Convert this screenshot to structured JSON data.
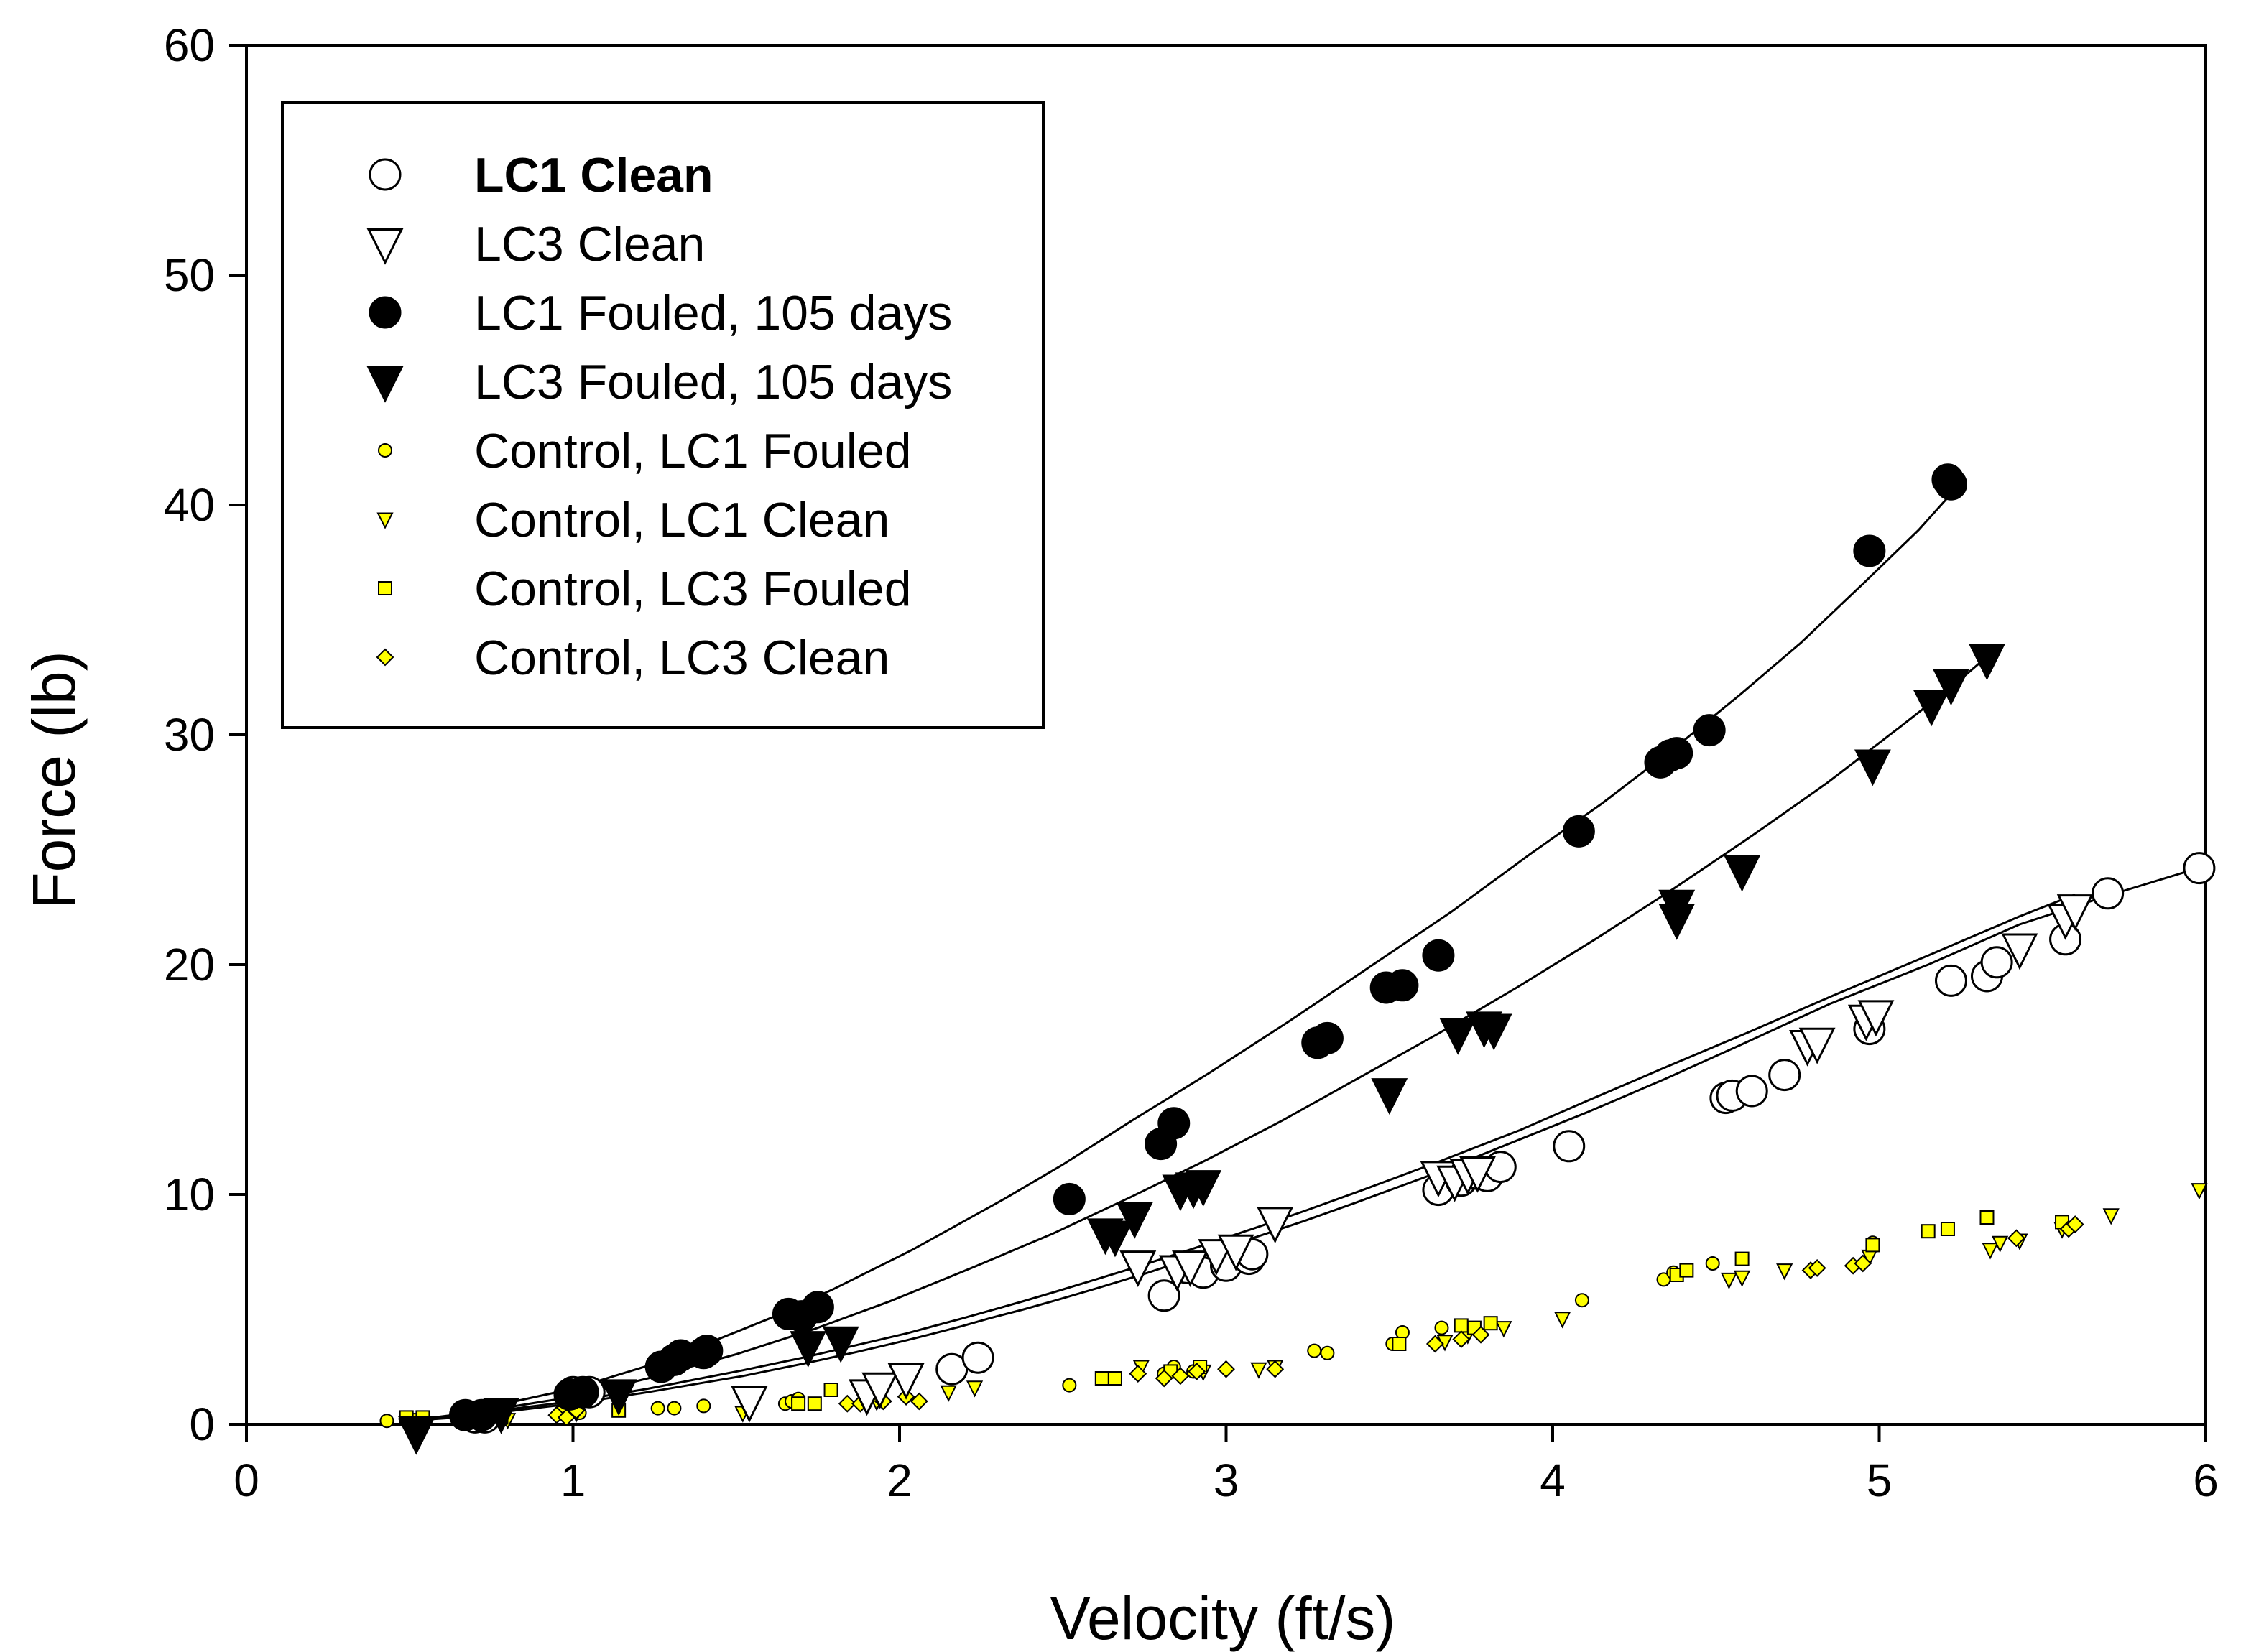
{
  "chart_data": {
    "type": "scatter",
    "title": "",
    "xlabel": "Velocity (ft/s)",
    "ylabel": "Force (lb)",
    "xlim": [
      0,
      6
    ],
    "ylim": [
      0,
      60
    ],
    "xticks": [
      0,
      1,
      2,
      3,
      4,
      5,
      6
    ],
    "yticks": [
      0,
      10,
      20,
      30,
      40,
      50,
      60
    ],
    "grid": false,
    "legend_position": "top-left",
    "legend_bold_first": true,
    "colors": {
      "marker_yellow": "#FFFF00",
      "black": "#000000",
      "white": "#FFFFFF"
    },
    "series": [
      {
        "name": "LC1 Clean",
        "marker": "circle",
        "size": "large",
        "fill": "#FFFFFF",
        "stroke": "#000000",
        "fit": [
          0.49,
          0.63,
          1.0,
          1.23,
          1.52,
          1.71,
          1.87,
          2.02,
          2.09,
          2.19,
          2.28,
          2.38,
          2.48,
          2.6,
          2.75,
          2.92,
          3.09,
          3.24,
          3.4,
          3.65,
          3.9,
          4.11,
          4.34,
          4.59,
          4.85,
          5.15,
          5.43,
          5.7,
          6.0
        ],
        "fit_y": [
          0.15,
          0.28,
          0.9,
          1.4,
          2.1,
          2.65,
          3.15,
          3.65,
          3.9,
          4.27,
          4.63,
          5.0,
          5.4,
          5.9,
          6.55,
          7.34,
          8.14,
          8.85,
          9.66,
          10.97,
          12.4,
          13.6,
          15.0,
          16.6,
          18.3,
          20.0,
          21.75,
          23.0,
          24.3
        ],
        "points": [
          [
            0.7,
            0.3
          ],
          [
            0.73,
            0.3
          ],
          [
            1.0,
            1.4
          ],
          [
            1.05,
            1.4
          ],
          [
            2.16,
            2.4
          ],
          [
            2.24,
            2.9
          ],
          [
            2.81,
            5.6
          ],
          [
            2.88,
            6.8
          ],
          [
            2.93,
            6.6
          ],
          [
            3.0,
            6.9
          ],
          [
            3.07,
            7.2
          ],
          [
            3.08,
            7.4
          ],
          [
            3.65,
            10.2
          ],
          [
            3.72,
            10.6
          ],
          [
            3.77,
            10.9
          ],
          [
            3.8,
            10.8
          ],
          [
            3.84,
            11.2
          ],
          [
            4.05,
            12.1
          ],
          [
            4.53,
            14.2
          ],
          [
            4.55,
            14.3
          ],
          [
            4.61,
            14.5
          ],
          [
            4.71,
            15.2
          ],
          [
            4.97,
            17.2
          ],
          [
            5.22,
            19.3
          ],
          [
            5.33,
            19.5
          ],
          [
            5.36,
            20.1
          ],
          [
            5.57,
            21.1
          ],
          [
            5.7,
            23.1
          ],
          [
            5.98,
            24.2
          ]
        ]
      },
      {
        "name": "LC3 Clean",
        "marker": "triangle-down",
        "size": "large",
        "fill": "#FFFFFF",
        "stroke": "#000000",
        "fit": [
          0.49,
          0.63,
          1.0,
          1.23,
          1.52,
          1.71,
          1.87,
          2.02,
          2.09,
          2.19,
          2.28,
          2.38,
          2.48,
          2.6,
          2.75,
          2.92,
          3.09,
          3.24,
          3.4,
          3.65,
          3.9,
          4.11,
          4.34,
          4.59,
          4.85,
          5.15,
          5.43,
          5.6
        ],
        "fit_y": [
          0.2,
          0.35,
          1.0,
          1.55,
          2.35,
          2.92,
          3.45,
          3.95,
          4.22,
          4.6,
          4.96,
          5.36,
          5.78,
          6.3,
          6.95,
          7.74,
          8.55,
          9.28,
          10.1,
          11.42,
          12.8,
          14.1,
          15.5,
          17.0,
          18.6,
          20.4,
          22.1,
          23.05
        ],
        "points": [
          [
            0.52,
            -0.4
          ],
          [
            1.54,
            1.0
          ],
          [
            1.9,
            1.3
          ],
          [
            1.94,
            1.6
          ],
          [
            2.02,
            2.0
          ],
          [
            2.73,
            6.9
          ],
          [
            2.85,
            6.7
          ],
          [
            2.89,
            6.9
          ],
          [
            2.97,
            7.4
          ],
          [
            3.03,
            7.6
          ],
          [
            3.15,
            8.8
          ],
          [
            3.65,
            10.8
          ],
          [
            3.7,
            10.6
          ],
          [
            3.74,
            10.9
          ],
          [
            3.77,
            11.0
          ],
          [
            4.78,
            16.5
          ],
          [
            4.81,
            16.6
          ],
          [
            4.96,
            17.6
          ],
          [
            4.99,
            17.8
          ],
          [
            5.43,
            20.7
          ],
          [
            5.57,
            22.0
          ],
          [
            5.6,
            22.4
          ]
        ]
      },
      {
        "name": "LC1 Fouled, 105 days",
        "marker": "circle",
        "size": "large",
        "fill": "#000000",
        "stroke": "#000000",
        "fit": [
          0.49,
          0.63,
          1.0,
          1.23,
          1.4,
          1.61,
          1.8,
          2.04,
          2.32,
          2.5,
          2.71,
          2.95,
          3.2,
          3.45,
          3.69,
          3.93,
          4.15,
          4.38,
          4.57,
          4.76,
          4.96,
          5.12,
          5.24
        ],
        "fit_y": [
          0.15,
          0.4,
          1.55,
          2.55,
          3.45,
          4.65,
          5.9,
          7.6,
          9.8,
          11.3,
          13.2,
          15.3,
          17.6,
          20.0,
          22.3,
          24.8,
          27.0,
          29.5,
          31.7,
          34.0,
          36.7,
          38.9,
          40.8
        ],
        "points": [
          [
            0.67,
            0.4
          ],
          [
            0.72,
            0.4
          ],
          [
            0.99,
            1.3
          ],
          [
            1.03,
            1.4
          ],
          [
            1.27,
            2.5
          ],
          [
            1.31,
            2.8
          ],
          [
            1.33,
            3.0
          ],
          [
            1.4,
            3.1
          ],
          [
            1.41,
            3.2
          ],
          [
            1.66,
            4.8
          ],
          [
            1.7,
            4.7
          ],
          [
            1.75,
            5.1
          ],
          [
            2.52,
            9.8
          ],
          [
            2.8,
            12.2
          ],
          [
            2.84,
            13.1
          ],
          [
            3.28,
            16.6
          ],
          [
            3.31,
            16.8
          ],
          [
            3.49,
            19.0
          ],
          [
            3.54,
            19.1
          ],
          [
            3.65,
            20.4
          ],
          [
            4.08,
            25.8
          ],
          [
            4.33,
            28.8
          ],
          [
            4.36,
            29.1
          ],
          [
            4.38,
            29.2
          ],
          [
            4.48,
            30.2
          ],
          [
            4.97,
            38.0
          ],
          [
            5.21,
            41.1
          ],
          [
            5.22,
            40.9
          ]
        ]
      },
      {
        "name": "LC3 Fouled, 105 days",
        "marker": "triangle-down",
        "size": "large",
        "fill": "#000000",
        "stroke": "#000000",
        "fit": [
          0.49,
          0.63,
          1.0,
          1.23,
          1.5,
          1.74,
          1.97,
          2.22,
          2.47,
          2.71,
          2.94,
          3.17,
          3.41,
          3.65,
          3.89,
          4.13,
          4.37,
          4.61,
          4.84,
          5.06,
          5.24,
          5.33
        ],
        "fit_y": [
          0.15,
          0.35,
          1.2,
          2.0,
          3.05,
          4.15,
          5.35,
          6.8,
          8.3,
          9.9,
          11.5,
          13.2,
          15.1,
          17.0,
          19.0,
          21.1,
          23.3,
          25.6,
          27.9,
          30.3,
          32.3,
          33.4
        ],
        "points": [
          [
            0.52,
            -0.3
          ],
          [
            0.78,
            0.5
          ],
          [
            1.14,
            1.3
          ],
          [
            1.72,
            3.4
          ],
          [
            1.82,
            3.6
          ],
          [
            2.63,
            8.3
          ],
          [
            2.66,
            8.2
          ],
          [
            2.72,
            9.0
          ],
          [
            2.86,
            10.2
          ],
          [
            2.9,
            10.3
          ],
          [
            2.93,
            10.4
          ],
          [
            3.5,
            14.4
          ],
          [
            3.71,
            17.0
          ],
          [
            3.79,
            17.3
          ],
          [
            3.82,
            17.2
          ],
          [
            4.38,
            22.6
          ],
          [
            4.38,
            22.0
          ],
          [
            4.58,
            24.1
          ],
          [
            4.98,
            28.7
          ],
          [
            5.16,
            31.3
          ],
          [
            5.22,
            32.2
          ],
          [
            5.33,
            33.3
          ]
        ]
      },
      {
        "name": "Control, LC1 Fouled",
        "marker": "circle",
        "size": "small",
        "fill": "#FFFF00",
        "stroke": "#000000",
        "points": [
          [
            0.43,
            0.15
          ],
          [
            0.65,
            0.25
          ],
          [
            0.73,
            0.2
          ],
          [
            0.96,
            0.5
          ],
          [
            1.02,
            0.5
          ],
          [
            1.26,
            0.7
          ],
          [
            1.31,
            0.7
          ],
          [
            1.4,
            0.8
          ],
          [
            1.65,
            0.9
          ],
          [
            1.67,
            1.0
          ],
          [
            1.69,
            1.1
          ],
          [
            2.52,
            1.7
          ],
          [
            2.81,
            2.2
          ],
          [
            2.84,
            2.5
          ],
          [
            2.9,
            2.3
          ],
          [
            3.27,
            3.2
          ],
          [
            3.31,
            3.1
          ],
          [
            3.51,
            3.5
          ],
          [
            3.54,
            4.0
          ],
          [
            3.66,
            4.2
          ],
          [
            4.09,
            5.4
          ],
          [
            4.34,
            6.3
          ],
          [
            4.37,
            6.6
          ],
          [
            4.49,
            7.0
          ],
          [
            4.98,
            7.9
          ]
        ]
      },
      {
        "name": "Control, LC1 Clean",
        "marker": "triangle-down",
        "size": "small",
        "fill": "#FFFF00",
        "stroke": "#000000",
        "points": [
          [
            0.52,
            0.2
          ],
          [
            0.8,
            0.2
          ],
          [
            1.01,
            0.5
          ],
          [
            1.52,
            0.5
          ],
          [
            1.54,
            1.0
          ],
          [
            1.93,
            1.0
          ],
          [
            2.15,
            1.4
          ],
          [
            2.23,
            1.6
          ],
          [
            2.74,
            2.5
          ],
          [
            2.93,
            2.3
          ],
          [
            3.1,
            2.4
          ],
          [
            3.15,
            2.5
          ],
          [
            3.67,
            3.6
          ],
          [
            3.74,
            3.9
          ],
          [
            3.85,
            4.2
          ],
          [
            4.03,
            4.6
          ],
          [
            4.54,
            6.3
          ],
          [
            4.58,
            6.4
          ],
          [
            4.71,
            6.7
          ],
          [
            4.97,
            7.3
          ],
          [
            5.34,
            7.6
          ],
          [
            5.37,
            7.9
          ],
          [
            5.43,
            8.0
          ],
          [
            5.56,
            8.5
          ],
          [
            5.71,
            9.1
          ],
          [
            5.98,
            10.2
          ]
        ]
      },
      {
        "name": "Control, LC3 Fouled",
        "marker": "square",
        "size": "small",
        "fill": "#FFFF00",
        "stroke": "#000000",
        "points": [
          [
            0.49,
            0.3
          ],
          [
            0.54,
            0.3
          ],
          [
            0.78,
            0.3
          ],
          [
            1.14,
            0.6
          ],
          [
            1.69,
            0.9
          ],
          [
            1.74,
            0.9
          ],
          [
            1.79,
            1.5
          ],
          [
            2.62,
            2.0
          ],
          [
            2.66,
            2.0
          ],
          [
            2.83,
            2.3
          ],
          [
            2.92,
            2.5
          ],
          [
            3.53,
            3.5
          ],
          [
            3.72,
            4.3
          ],
          [
            3.76,
            4.2
          ],
          [
            3.81,
            4.4
          ],
          [
            4.38,
            6.5
          ],
          [
            4.41,
            6.7
          ],
          [
            4.58,
            7.2
          ],
          [
            4.98,
            7.8
          ],
          [
            5.15,
            8.4
          ],
          [
            5.21,
            8.5
          ],
          [
            5.33,
            9.0
          ],
          [
            5.56,
            8.8
          ]
        ]
      },
      {
        "name": "Control, LC3 Clean",
        "marker": "diamond",
        "size": "small",
        "fill": "#FFFF00",
        "stroke": "#000000",
        "points": [
          [
            0.95,
            0.4
          ],
          [
            0.98,
            0.3
          ],
          [
            1.01,
            0.6
          ],
          [
            1.84,
            0.9
          ],
          [
            1.88,
            0.9
          ],
          [
            1.95,
            1.0
          ],
          [
            2.02,
            1.2
          ],
          [
            2.06,
            1.0
          ],
          [
            2.73,
            2.2
          ],
          [
            2.81,
            2.0
          ],
          [
            2.86,
            2.1
          ],
          [
            2.91,
            2.3
          ],
          [
            3.0,
            2.4
          ],
          [
            3.15,
            2.4
          ],
          [
            3.64,
            3.5
          ],
          [
            3.72,
            3.7
          ],
          [
            3.78,
            3.9
          ],
          [
            4.79,
            6.7
          ],
          [
            4.81,
            6.8
          ],
          [
            4.92,
            6.9
          ],
          [
            4.95,
            7.0
          ],
          [
            5.58,
            8.5
          ],
          [
            5.6,
            8.7
          ],
          [
            5.42,
            8.1
          ]
        ]
      }
    ]
  }
}
